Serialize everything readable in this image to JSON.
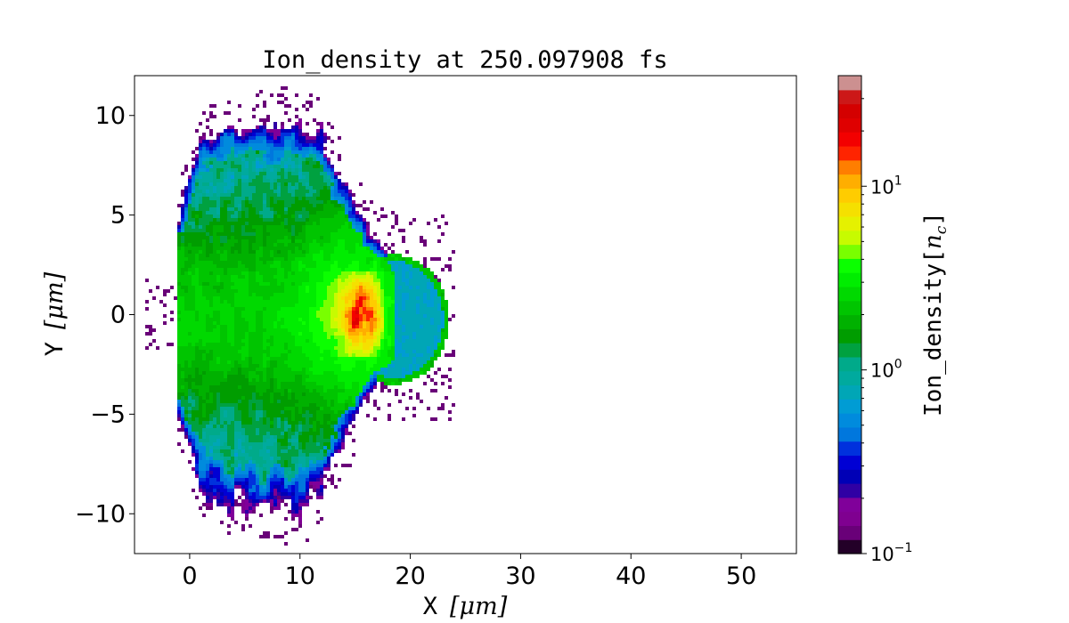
{
  "chart_data": {
    "type": "heatmap",
    "title": "Ion_density at 250.097908 fs",
    "xlabel_text": "X",
    "xlabel_unit": "[μm]",
    "ylabel_text": "Y",
    "ylabel_unit": "[μm]",
    "xlim": [
      -5,
      55
    ],
    "ylim": [
      -12,
      12
    ],
    "xticks": [
      0,
      10,
      20,
      30,
      40,
      50
    ],
    "yticks": [
      -10,
      -5,
      0,
      5,
      10
    ],
    "xtick_labels": [
      "0",
      "10",
      "20",
      "30",
      "40",
      "50"
    ],
    "ytick_labels": [
      "−10",
      "−5",
      "0",
      "5",
      "10"
    ],
    "colorbar": {
      "label": "Ion_density[",
      "label_sym": "n",
      "label_sub": "c",
      "label_end": "]",
      "scale": "log",
      "range": [
        0.1,
        40
      ],
      "ticks": [
        {
          "value": 0.1,
          "base": "10",
          "exp": "−1"
        },
        {
          "value": 1,
          "base": "10",
          "exp": "0"
        },
        {
          "value": 10,
          "base": "10",
          "exp": "1"
        }
      ],
      "colormap": "nipy_spectral",
      "levels": 34
    },
    "features": [
      {
        "name": "plasma plume",
        "x_range": [
          0,
          18
        ],
        "y_range": [
          -11,
          11
        ],
        "typical_density": 2.5
      },
      {
        "name": "dense core",
        "x_range": [
          10,
          18
        ],
        "y_range": [
          -2,
          2.5
        ],
        "peak_density": 28
      },
      {
        "name": "foil shell",
        "x_range": [
          18,
          23.5
        ],
        "y_range": [
          -3.5,
          3
        ],
        "typical_density": 0.7
      }
    ]
  }
}
